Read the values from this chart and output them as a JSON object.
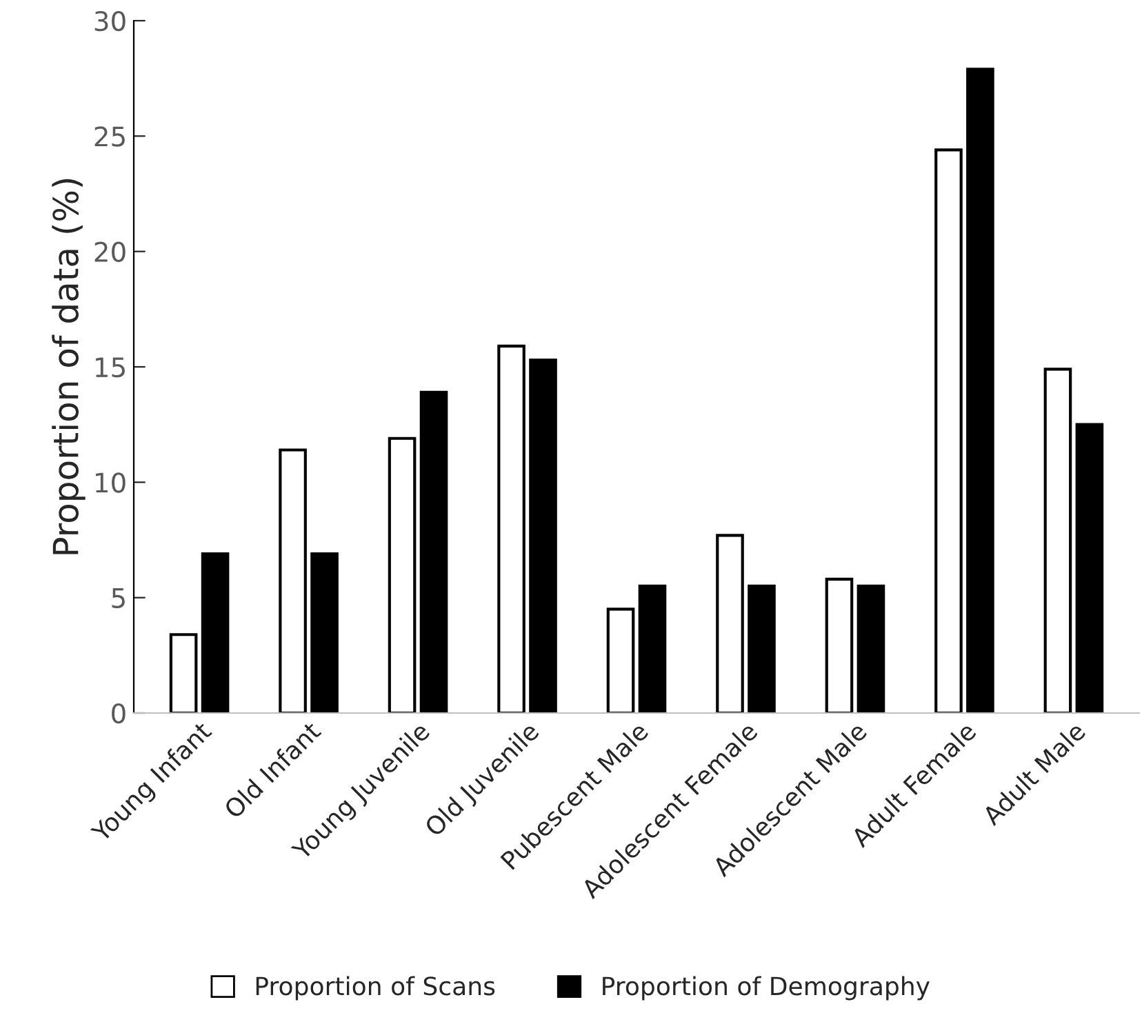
{
  "chart_data": {
    "type": "bar",
    "ylabel": "Proportion of data (%)",
    "categories": [
      "Young Infant",
      "Old Infant",
      "Young Juvenile",
      "Old Juvenile",
      "Pubescent Male",
      "Adolescent Female",
      "Adolescent Male",
      "Adult Female",
      "Adult Male"
    ],
    "series": [
      {
        "name": "Proportion of Scans",
        "color": "#ffffff",
        "values": [
          3.4,
          11.4,
          11.9,
          15.9,
          4.5,
          7.7,
          5.8,
          24.4,
          14.9
        ]
      },
      {
        "name": "Proportion of Demography",
        "color": "#000000",
        "values": [
          6.9,
          6.9,
          13.9,
          15.3,
          5.5,
          5.5,
          5.5,
          27.9,
          12.5
        ]
      }
    ],
    "ylim": [
      0,
      30
    ],
    "yticks": [
      0,
      5,
      10,
      15,
      20,
      25,
      30
    ],
    "grid": false,
    "legend": "bottom"
  }
}
